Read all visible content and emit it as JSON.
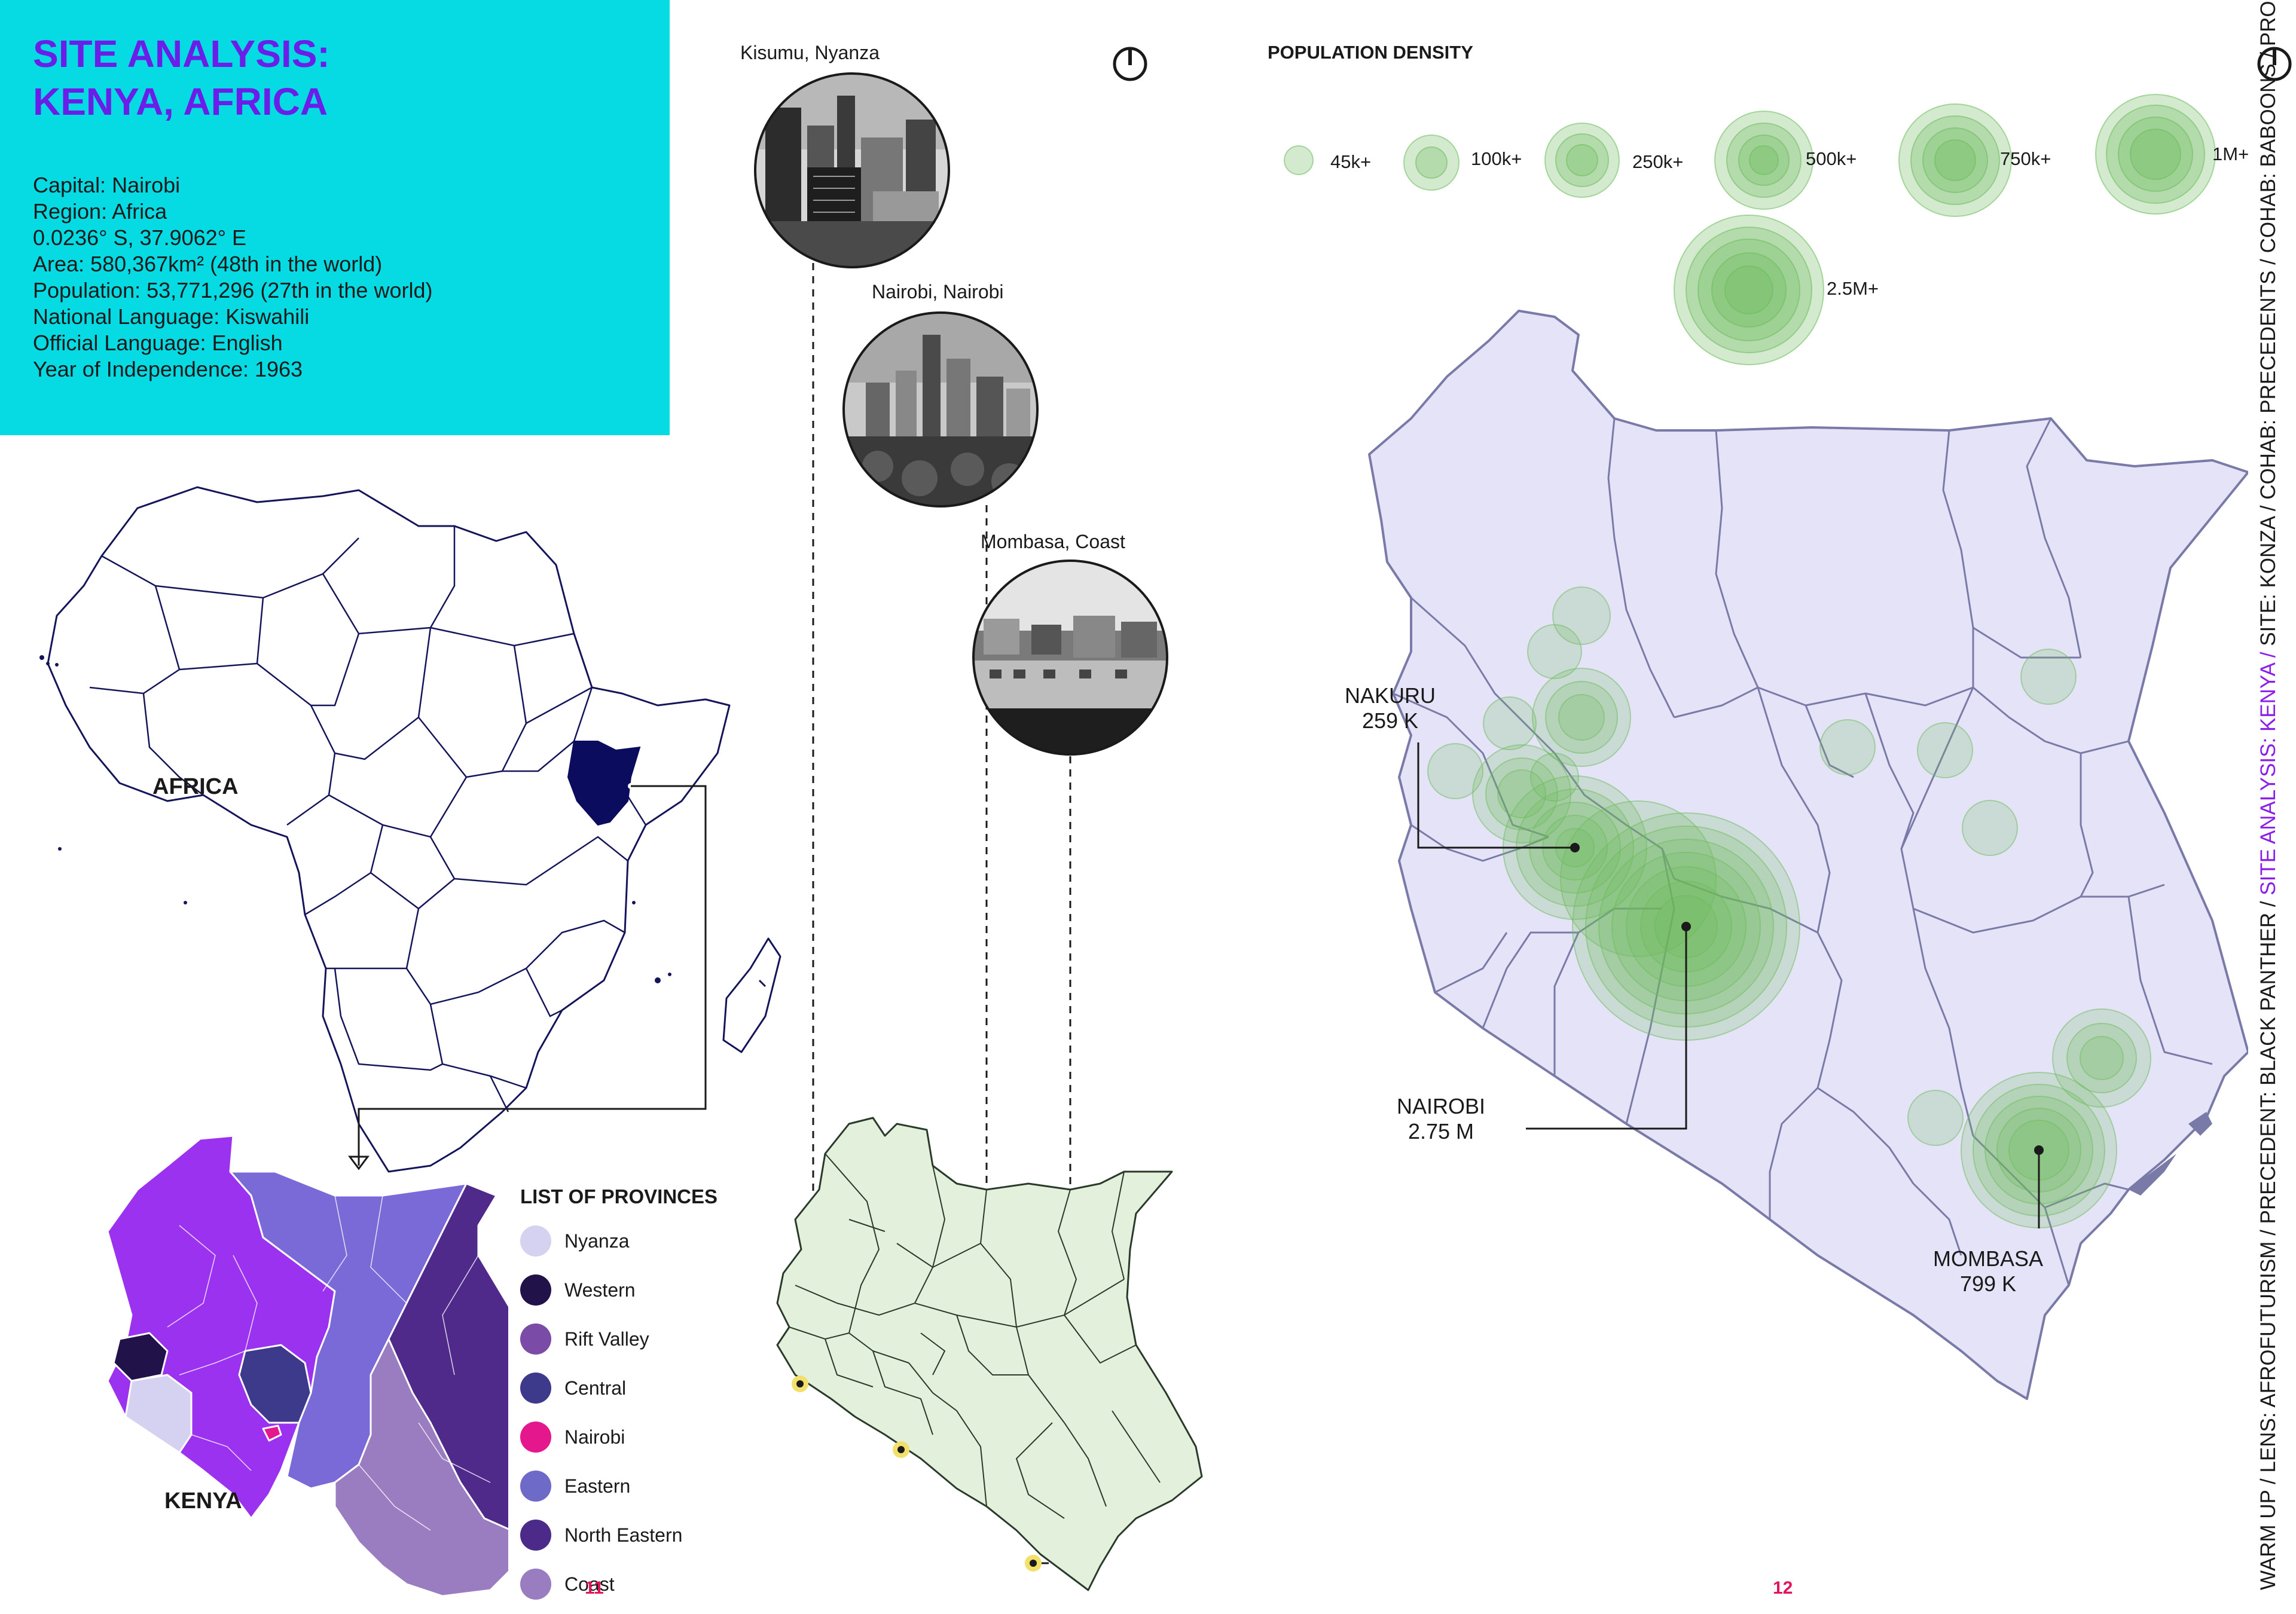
{
  "header": {
    "title_line1": "SITE ANALYSIS:",
    "title_line2": "KENYA, AFRICA",
    "facts": [
      "Capital: Nairobi",
      "Region: Africa",
      "0.0236° S, 37.9062° E",
      "Area: 580,367km² (48th in the world)",
      "Population: 53,771,296 (27th in the world)",
      "National Language: Kiswahili",
      "Official Language: English",
      "Year of Independence: 1963"
    ]
  },
  "africa_map": {
    "label": "AFRICA"
  },
  "kenya_provinces_map": {
    "label": "KENYA",
    "legend_title": "LIST OF PROVINCES",
    "provinces": [
      {
        "name": "Nyanza",
        "color": "#d4d2f0"
      },
      {
        "name": "Western",
        "color": "#21124a"
      },
      {
        "name": "Rift Valley",
        "color": "#7b4ba8"
      },
      {
        "name": "Central",
        "color": "#3d3a8c"
      },
      {
        "name": "Nairobi",
        "color": "#e5178c"
      },
      {
        "name": "Eastern",
        "color": "#6d6ac8"
      },
      {
        "name": "North Eastern",
        "color": "#4b2a8a"
      },
      {
        "name": "Coast",
        "color": "#9a7cc0"
      }
    ]
  },
  "city_photos": [
    {
      "caption": "Kisumu, Nyanza"
    },
    {
      "caption": "Nairobi, Nairobi"
    },
    {
      "caption": "Mombasa, Coast"
    }
  ],
  "population_density": {
    "title": "POPULATION DENSITY",
    "legend": [
      {
        "label": "45k+"
      },
      {
        "label": "100k+"
      },
      {
        "label": "250k+"
      },
      {
        "label": "500k+"
      },
      {
        "label": "750k+"
      },
      {
        "label": "1M+"
      },
      {
        "label": "2.5M+"
      }
    ],
    "cities": [
      {
        "name": "NAKURU",
        "population": "259 K"
      },
      {
        "name": "NAIROBI",
        "population": "2.75 M"
      },
      {
        "name": "MOMBASA",
        "population": "799 K"
      }
    ]
  },
  "colors": {
    "info_box": "#06dbe4",
    "title": "#6b1ee8",
    "map_fill": "#e4e3f7",
    "map_stroke": "#7a7aa8",
    "density_bubble": "#6dbb5c",
    "page_number": "#e0155c",
    "side_highlight": "#8b1ee8"
  },
  "page_numbers": {
    "left": "11",
    "right": "12"
  },
  "side_breadcrumb": {
    "before": "WARM UP / LENS: AFROFUTURISM / PRECEDENT: BLACK PANTHER / ",
    "highlight": "SITE ANALYSIS: KENYA /",
    "after": " SITE: KONZA / COHAB: PRECEDENTS / COHAB: BABOONS / PROGRAM /"
  }
}
